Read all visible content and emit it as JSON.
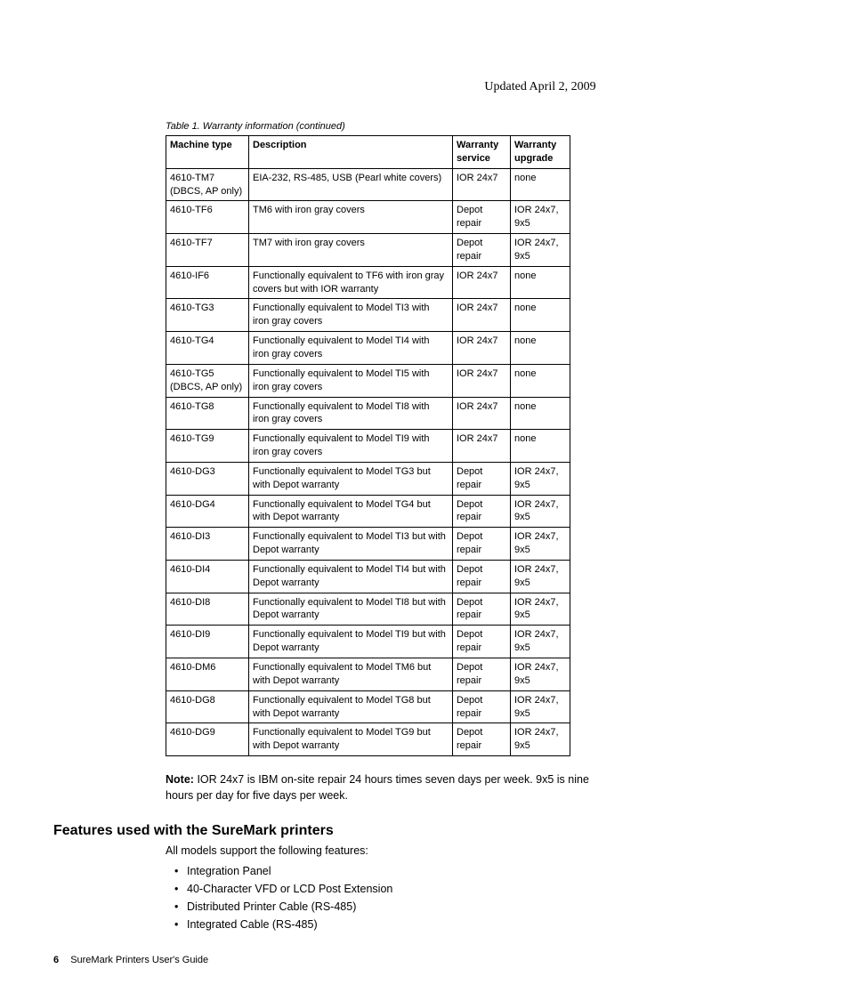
{
  "header": {
    "updated": "Updated April 2, 2009"
  },
  "table": {
    "caption": "Table 1. Warranty information  (continued)",
    "columns": [
      "Machine type",
      "Description",
      "Warranty service",
      "Warranty upgrade"
    ],
    "rows": [
      [
        "4610-TM7 (DBCS, AP only)",
        "EIA-232, RS-485, USB (Pearl white covers)",
        "IOR 24x7",
        "none"
      ],
      [
        "4610-TF6",
        "TM6 with iron gray covers",
        "Depot repair",
        "IOR 24x7, 9x5"
      ],
      [
        "4610-TF7",
        "TM7 with iron gray covers",
        "Depot repair",
        "IOR 24x7, 9x5"
      ],
      [
        "4610-IF6",
        "Functionally equivalent to TF6 with iron gray covers but with IOR warranty",
        "IOR 24x7",
        "none"
      ],
      [
        "4610-TG3",
        "Functionally equivalent to Model TI3 with iron gray covers",
        "IOR 24x7",
        "none"
      ],
      [
        "4610-TG4",
        "Functionally equivalent to Model TI4 with iron gray covers",
        "IOR 24x7",
        "none"
      ],
      [
        "4610-TG5 (DBCS, AP only)",
        "Functionally equivalent to Model TI5 with iron gray covers",
        "IOR 24x7",
        "none"
      ],
      [
        "4610-TG8",
        "Functionally equivalent to Model TI8 with iron gray covers",
        "IOR 24x7",
        "none"
      ],
      [
        "4610-TG9",
        "Functionally equivalent to Model TI9 with iron gray covers",
        "IOR 24x7",
        "none"
      ],
      [
        "4610-DG3",
        "Functionally equivalent to Model TG3 but with Depot warranty",
        "Depot repair",
        "IOR 24x7, 9x5"
      ],
      [
        "4610-DG4",
        "Functionally equivalent to Model TG4 but with Depot warranty",
        "Depot repair",
        "IOR 24x7, 9x5"
      ],
      [
        "4610-DI3",
        "Functionally equivalent to Model TI3 but with Depot warranty",
        "Depot repair",
        "IOR 24x7, 9x5"
      ],
      [
        "4610-DI4",
        "Functionally equivalent to Model TI4 but with Depot warranty",
        "Depot repair",
        "IOR 24x7, 9x5"
      ],
      [
        "4610-DI8",
        "Functionally equivalent to Model TI8 but with Depot warranty",
        "Depot repair",
        "IOR 24x7, 9x5"
      ],
      [
        "4610-DI9",
        "Functionally equivalent to Model TI9 but with Depot warranty",
        "Depot repair",
        "IOR 24x7, 9x5"
      ],
      [
        "4610-DM6",
        "Functionally equivalent to Model TM6 but with Depot warranty",
        "Depot repair",
        "IOR 24x7, 9x5"
      ],
      [
        "4610-DG8",
        "Functionally equivalent to Model TG8 but with Depot warranty",
        "Depot repair",
        "IOR 24x7, 9x5"
      ],
      [
        "4610-DG9",
        "Functionally equivalent to Model TG9 but with Depot warranty",
        "Depot repair",
        "IOR 24x7, 9x5"
      ]
    ]
  },
  "note": {
    "label": "Note:",
    "text": "IOR 24x7 is IBM on-site repair 24 hours times seven days per week. 9x5 is nine hours per day for five days per week."
  },
  "section": {
    "heading": "Features used with the SureMark printers",
    "intro": "All models support the following features:",
    "features": [
      "Integration Panel",
      "40-Character VFD or LCD Post Extension",
      "Distributed Printer Cable (RS-485)",
      "Integrated Cable (RS-485)"
    ]
  },
  "footer": {
    "page": "6",
    "title": "SureMark Printers User's Guide"
  }
}
